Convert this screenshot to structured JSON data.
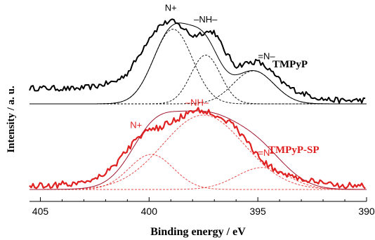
{
  "chart_data": {
    "type": "line",
    "xlabel": "Binding energy / eV",
    "ylabel": "Intensity / a. u.",
    "xlim": [
      405.5,
      390
    ],
    "x_reversed": true,
    "x_ticks": [
      405,
      400,
      395,
      390
    ],
    "grid": false,
    "panels": [
      {
        "name": "TMPyP",
        "color": "#000000",
        "baseline": 0.0,
        "peak_labels": [
          {
            "text": "N+",
            "x": 399.0
          },
          {
            "text": "–NH–",
            "x": 397.4
          },
          {
            "text": "=N–",
            "x": 394.6
          }
        ],
        "components": [
          {
            "center": 398.9,
            "height": 0.95,
            "fwhm": 2.1
          },
          {
            "center": 397.4,
            "height": 0.62,
            "fwhm": 1.6
          },
          {
            "center": 395.2,
            "height": 0.42,
            "fwhm": 2.2
          }
        ],
        "measured": {
          "x": [
            405.5,
            404.5,
            403.5,
            402.5,
            401.5,
            401.0,
            400.5,
            400.0,
            399.5,
            399.0,
            398.5,
            398.0,
            397.5,
            397.0,
            396.5,
            396.0,
            395.5,
            395.0,
            394.5,
            394.0,
            393.5,
            393.0,
            392.5,
            392.0,
            391.0,
            390.0
          ],
          "y": [
            0.2,
            0.2,
            0.19,
            0.22,
            0.29,
            0.39,
            0.6,
            0.84,
            1.0,
            1.06,
            0.98,
            0.86,
            0.91,
            0.92,
            0.66,
            0.48,
            0.52,
            0.54,
            0.44,
            0.3,
            0.2,
            0.14,
            0.1,
            0.06,
            0.04,
            0.05
          ]
        },
        "noise_amplitude": 0.035
      },
      {
        "name": "TMPyP-SP",
        "color": "#e02020",
        "baseline": 0.0,
        "peak_labels": [
          {
            "text": "N+",
            "x": 400.6
          },
          {
            "text": "–NH–",
            "x": 397.8
          },
          {
            "text": "=N–",
            "x": 394.6
          }
        ],
        "components": [
          {
            "center": 399.9,
            "height": 0.48,
            "fwhm": 2.4
          },
          {
            "center": 397.5,
            "height": 1.02,
            "fwhm": 4.4
          },
          {
            "center": 394.8,
            "height": 0.3,
            "fwhm": 2.8
          }
        ],
        "measured": {
          "x": [
            405.5,
            404.5,
            403.5,
            402.5,
            402.0,
            401.5,
            401.0,
            400.5,
            400.0,
            399.5,
            399.0,
            398.5,
            398.0,
            397.5,
            397.0,
            396.5,
            396.0,
            395.5,
            395.0,
            394.5,
            394.0,
            393.5,
            393.0,
            392.0,
            391.0,
            390.0
          ],
          "y": [
            0.05,
            0.06,
            0.08,
            0.15,
            0.24,
            0.36,
            0.55,
            0.72,
            0.8,
            0.85,
            0.92,
            1.0,
            1.07,
            1.08,
            1.04,
            0.96,
            0.84,
            0.66,
            0.46,
            0.32,
            0.24,
            0.19,
            0.14,
            0.08,
            0.06,
            0.05
          ]
        },
        "noise_amplitude": 0.045
      }
    ]
  }
}
